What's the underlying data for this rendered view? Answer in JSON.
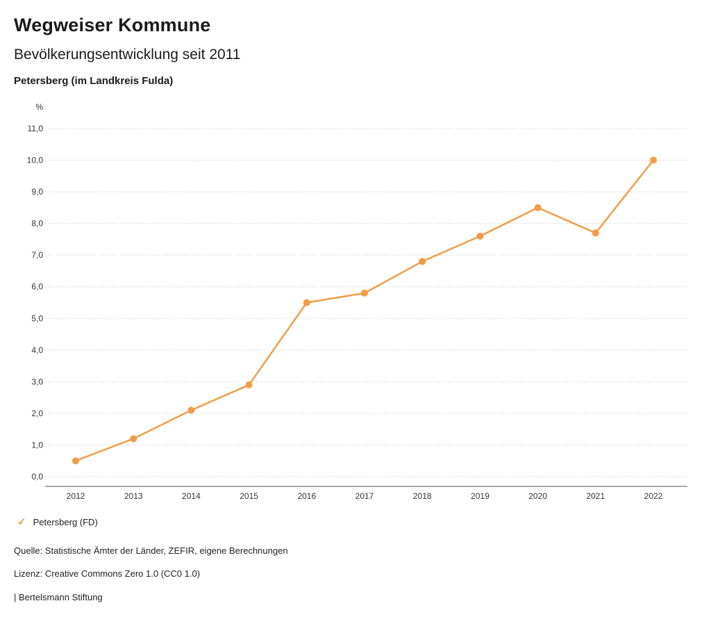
{
  "header": {
    "title": "Wegweiser Kommune",
    "subtitle": "Bevölkerungsentwicklung seit 2011",
    "region": "Petersberg (im Landkreis Fulda)"
  },
  "chart_data": {
    "type": "line",
    "title": "Bevölkerungsentwicklung seit 2011",
    "unit_label": "%",
    "xlabel": "",
    "ylabel": "%",
    "x": [
      2012,
      2013,
      2014,
      2015,
      2016,
      2017,
      2018,
      2019,
      2020,
      2021,
      2022
    ],
    "series": [
      {
        "name": "Petersberg (FD)",
        "color": "#F39C47",
        "values": [
          0.5,
          1.2,
          2.1,
          2.9,
          5.5,
          5.8,
          6.8,
          7.6,
          8.5,
          7.7,
          10.0
        ]
      }
    ],
    "ylim": [
      0,
      11
    ],
    "ytick_step": 1,
    "decimal_separator": ",",
    "grid": "dotted-horizontal",
    "legend_position": "bottom-left"
  },
  "legend": {
    "items": [
      {
        "label": "Petersberg (FD)",
        "color": "#F39C47",
        "marker": "check"
      }
    ]
  },
  "footer": {
    "source": "Quelle: Statistische Ämter der Länder, ZEFIR, eigene Berechnungen",
    "license": "Lizenz: Creative Commons Zero 1.0 (CC0 1.0)",
    "attribution": "| Bertelsmann Stiftung"
  }
}
